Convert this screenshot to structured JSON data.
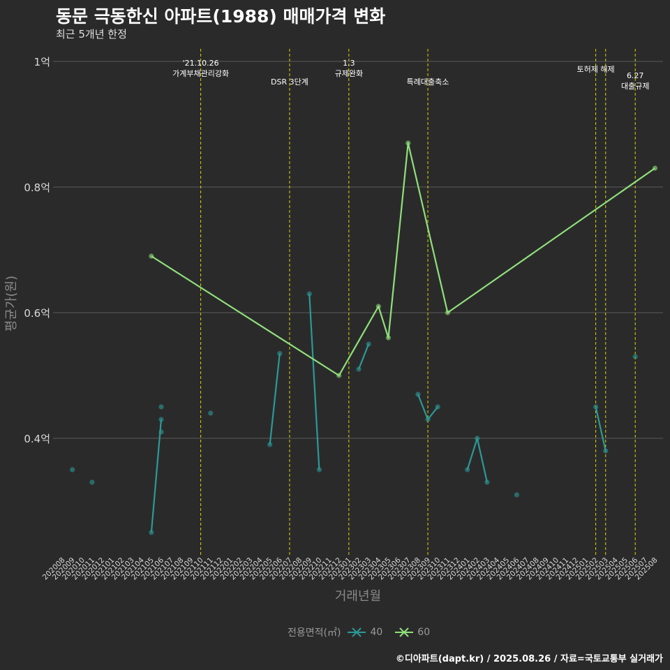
{
  "title": "동문 극동한신 아파트(1988) 매매가격 변화",
  "subtitle": "최근 5개년 한정",
  "caption": "©디아파트(dapt.kr) / 2025.08.26 / 자료=국토교통부 실거래가",
  "colors": {
    "background": "#2b2a2b",
    "grid": "#5a5a5a",
    "vline": "#d8d800",
    "series40": "#2a9a96",
    "series60": "#8fe07a",
    "text": "#d9d9d9",
    "axis_title": "#8a8a8a"
  },
  "legend": {
    "title": "전용면적(㎡)",
    "items": [
      {
        "label": "40",
        "color": "#2a9a96"
      },
      {
        "label": "60",
        "color": "#8fe07a"
      }
    ]
  },
  "chart_data": {
    "type": "line",
    "title": "동문 극동한신 아파트(1988) 매매가격 변화",
    "xlabel": "거래년월",
    "ylabel": "평균가(원)",
    "categories": [
      "202008",
      "202009",
      "202010",
      "202011",
      "202012",
      "202101",
      "202102",
      "202103",
      "202104",
      "202105",
      "202106",
      "202107",
      "202108",
      "202109",
      "202110",
      "202111",
      "202112",
      "202201",
      "202202",
      "202203",
      "202204",
      "202205",
      "202206",
      "202207",
      "202208",
      "202209",
      "202210",
      "202211",
      "202212",
      "202301",
      "202302",
      "202303",
      "202304",
      "202305",
      "202306",
      "202307",
      "202308",
      "202309",
      "202310",
      "202311",
      "202312",
      "202401",
      "202402",
      "202403",
      "202404",
      "202405",
      "202406",
      "202407",
      "202408",
      "202409",
      "202410",
      "202411",
      "202412",
      "202501",
      "202502",
      "202503",
      "202504",
      "202505",
      "202506",
      "202507",
      "202508"
    ],
    "yticks": [
      {
        "value": 0.4,
        "label": "0.4억"
      },
      {
        "value": 0.6,
        "label": "0.6억"
      },
      {
        "value": 0.8,
        "label": "0.8억"
      },
      {
        "value": 1.0,
        "label": "1억"
      }
    ],
    "ylim": [
      0.22,
      1.02
    ],
    "series": [
      {
        "name": "40",
        "color": "#2a9a96",
        "points": [
          {
            "x": "202009",
            "y": 0.35
          },
          {
            "x": "202011",
            "y": 0.33
          },
          {
            "x": "202105",
            "y": 0.25
          },
          {
            "x": "202106",
            "y": 0.43
          },
          {
            "x": "202106",
            "y": 0.45
          },
          {
            "x": "202106",
            "y": 0.41
          },
          {
            "x": "202111",
            "y": 0.44
          },
          {
            "x": "202205",
            "y": 0.39
          },
          {
            "x": "202206",
            "y": 0.535
          },
          {
            "x": "202209",
            "y": 0.63
          },
          {
            "x": "202210",
            "y": 0.35
          },
          {
            "x": "202302",
            "y": 0.51
          },
          {
            "x": "202303",
            "y": 0.55
          },
          {
            "x": "202308",
            "y": 0.47
          },
          {
            "x": "202309",
            "y": 0.43
          },
          {
            "x": "202310",
            "y": 0.45
          },
          {
            "x": "202401",
            "y": 0.35
          },
          {
            "x": "202402",
            "y": 0.4
          },
          {
            "x": "202403",
            "y": 0.33
          },
          {
            "x": "202406",
            "y": 0.31
          },
          {
            "x": "202502",
            "y": 0.45
          },
          {
            "x": "202503",
            "y": 0.38
          },
          {
            "x": "202506",
            "y": 0.53
          }
        ],
        "segments": [
          [
            "202105",
            "202106"
          ],
          [
            "202205",
            "202206"
          ],
          [
            "202209",
            "202210"
          ],
          [
            "202302",
            "202303"
          ],
          [
            "202308",
            "202309",
            "202310"
          ],
          [
            "202401",
            "202402",
            "202403"
          ],
          [
            "202502",
            "202503"
          ]
        ],
        "segment_values": [
          [
            0.25,
            0.43
          ],
          [
            0.39,
            0.535
          ],
          [
            0.63,
            0.35
          ],
          [
            0.51,
            0.55
          ],
          [
            0.47,
            0.43,
            0.45
          ],
          [
            0.35,
            0.4,
            0.33
          ],
          [
            0.45,
            0.38
          ]
        ]
      },
      {
        "name": "60",
        "color": "#8fe07a",
        "points": [
          {
            "x": "202105",
            "y": 0.69
          },
          {
            "x": "202212",
            "y": 0.5
          },
          {
            "x": "202304",
            "y": 0.61
          },
          {
            "x": "202305",
            "y": 0.56
          },
          {
            "x": "202307",
            "y": 0.87
          },
          {
            "x": "202311",
            "y": 0.6
          },
          {
            "x": "202508",
            "y": 0.83
          }
        ],
        "segments": [
          [
            "202105",
            "202212",
            "202304",
            "202305",
            "202307",
            "202311",
            "202508"
          ]
        ],
        "segment_values": [
          [
            0.69,
            0.5,
            0.61,
            0.56,
            0.87,
            0.6,
            0.83
          ]
        ]
      }
    ],
    "events": [
      {
        "x": "202110",
        "lines": [
          "'21.10.26",
          "가계부채관리강화"
        ],
        "valign": "top"
      },
      {
        "x": "202207",
        "lines": [
          "DSR 3단계"
        ],
        "valign": "mid"
      },
      {
        "x": "202301",
        "lines": [
          "1.3",
          "규제완화"
        ],
        "valign": "top"
      },
      {
        "x": "202309",
        "lines": [
          "특례대출축소"
        ],
        "valign": "mid"
      },
      {
        "x": "202502",
        "lines": [
          "토허제 해제"
        ],
        "valign": "top2"
      },
      {
        "x": "202503",
        "lines": [],
        "valign": "none"
      },
      {
        "x": "202506",
        "lines": [
          "6.27",
          "대출규제"
        ],
        "valign": "low"
      }
    ]
  }
}
